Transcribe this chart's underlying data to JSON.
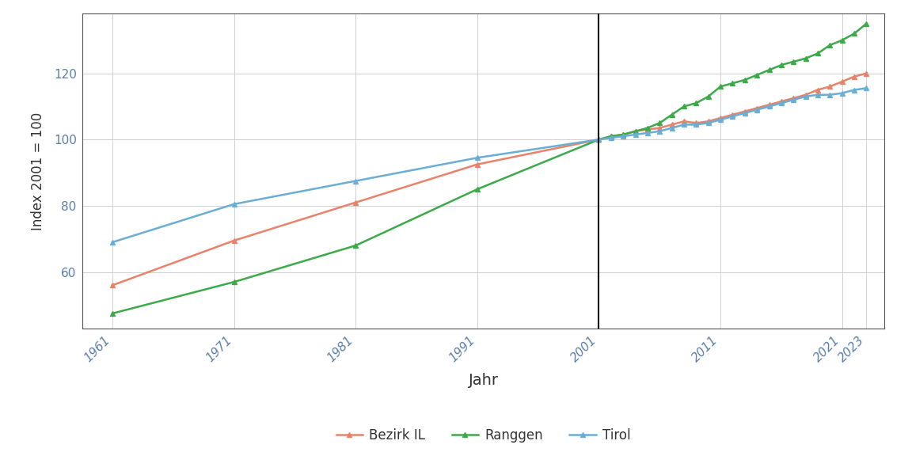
{
  "title": "",
  "xlabel": "Jahr",
  "ylabel": "Index 2001 = 100",
  "vline_x": 2001,
  "xticks": [
    1961,
    1971,
    1981,
    1991,
    2001,
    2011,
    2021,
    2023
  ],
  "yticks": [
    60,
    80,
    100,
    120
  ],
  "ylim": [
    43,
    138
  ],
  "xlim": [
    1958.5,
    2024.5
  ],
  "background_color": "#ffffff",
  "grid_color": "#d0d0d0",
  "series": {
    "Bezirk IL": {
      "color": "#E8836A",
      "marker": "^",
      "x": [
        1961,
        1971,
        1981,
        1991,
        2001,
        2002,
        2003,
        2004,
        2005,
        2006,
        2007,
        2008,
        2009,
        2010,
        2011,
        2012,
        2013,
        2014,
        2015,
        2016,
        2017,
        2018,
        2019,
        2020,
        2021,
        2022,
        2023
      ],
      "y": [
        56.0,
        69.5,
        81.0,
        92.5,
        100.0,
        101.0,
        101.5,
        102.5,
        103.0,
        103.5,
        104.5,
        105.5,
        105.0,
        105.5,
        106.5,
        107.5,
        108.5,
        109.5,
        110.5,
        111.5,
        112.5,
        113.5,
        115.0,
        116.0,
        117.5,
        119.0,
        120.0
      ]
    },
    "Ranggen": {
      "color": "#3DAA4A",
      "marker": "^",
      "x": [
        1961,
        1971,
        1981,
        1991,
        2001,
        2002,
        2003,
        2004,
        2005,
        2006,
        2007,
        2008,
        2009,
        2010,
        2011,
        2012,
        2013,
        2014,
        2015,
        2016,
        2017,
        2018,
        2019,
        2020,
        2021,
        2022,
        2023
      ],
      "y": [
        47.5,
        57.0,
        68.0,
        85.0,
        100.0,
        101.0,
        101.5,
        102.5,
        103.5,
        105.0,
        107.5,
        110.0,
        111.0,
        113.0,
        116.0,
        117.0,
        118.0,
        119.5,
        121.0,
        122.5,
        123.5,
        124.5,
        126.0,
        128.5,
        130.0,
        132.0,
        135.0
      ]
    },
    "Tirol": {
      "color": "#6aaed6",
      "marker": "^",
      "x": [
        1961,
        1971,
        1981,
        1991,
        2001,
        2002,
        2003,
        2004,
        2005,
        2006,
        2007,
        2008,
        2009,
        2010,
        2011,
        2012,
        2013,
        2014,
        2015,
        2016,
        2017,
        2018,
        2019,
        2020,
        2021,
        2022,
        2023
      ],
      "y": [
        69.0,
        80.5,
        87.5,
        94.5,
        100.0,
        100.5,
        101.0,
        101.5,
        102.0,
        102.5,
        103.5,
        104.5,
        104.5,
        105.0,
        106.0,
        107.0,
        108.0,
        109.0,
        110.0,
        111.0,
        112.0,
        113.0,
        113.5,
        113.5,
        114.0,
        115.0,
        115.5
      ]
    }
  },
  "legend_order": [
    "Bezirk IL",
    "Ranggen",
    "Tirol"
  ],
  "marker_size": 5,
  "linewidth": 1.8
}
